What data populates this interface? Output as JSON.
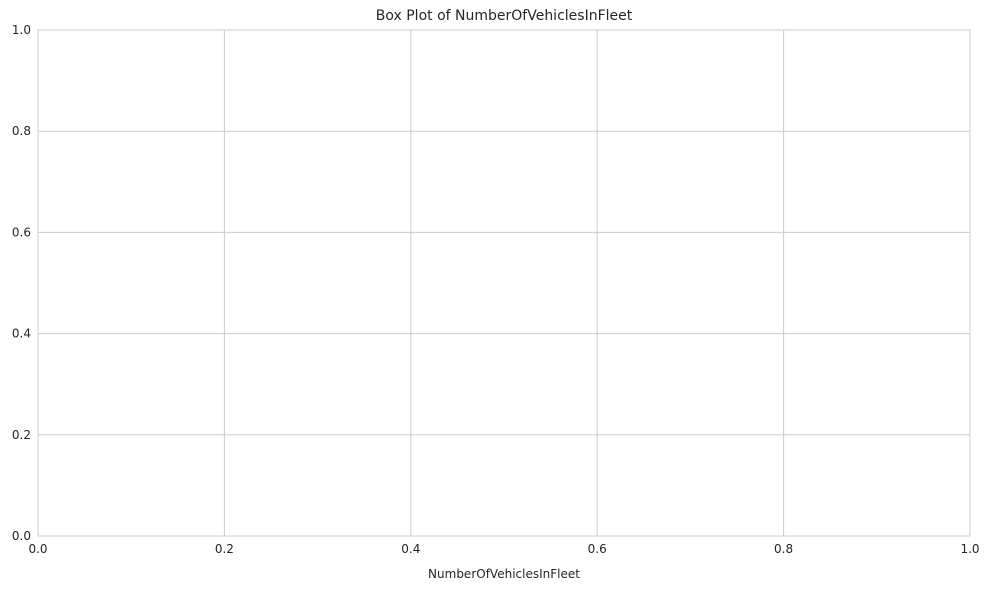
{
  "chart_data": {
    "type": "box",
    "title": "Box Plot of NumberOfVehiclesInFleet",
    "xlabel": "NumberOfVehiclesInFleet",
    "ylabel": "",
    "series": [],
    "xlim": [
      0,
      1
    ],
    "ylim": [
      0,
      1
    ],
    "x_ticks": [
      "0.0",
      "0.2",
      "0.4",
      "0.6",
      "0.8",
      "1.0"
    ],
    "y_ticks": [
      "0.0",
      "0.2",
      "0.4",
      "0.6",
      "0.8",
      "1.0"
    ],
    "grid": true,
    "legend": "none",
    "colors": {
      "grid": "#cccccc",
      "spine": "#cccccc",
      "text": "#262626",
      "background": "#ffffff"
    }
  }
}
